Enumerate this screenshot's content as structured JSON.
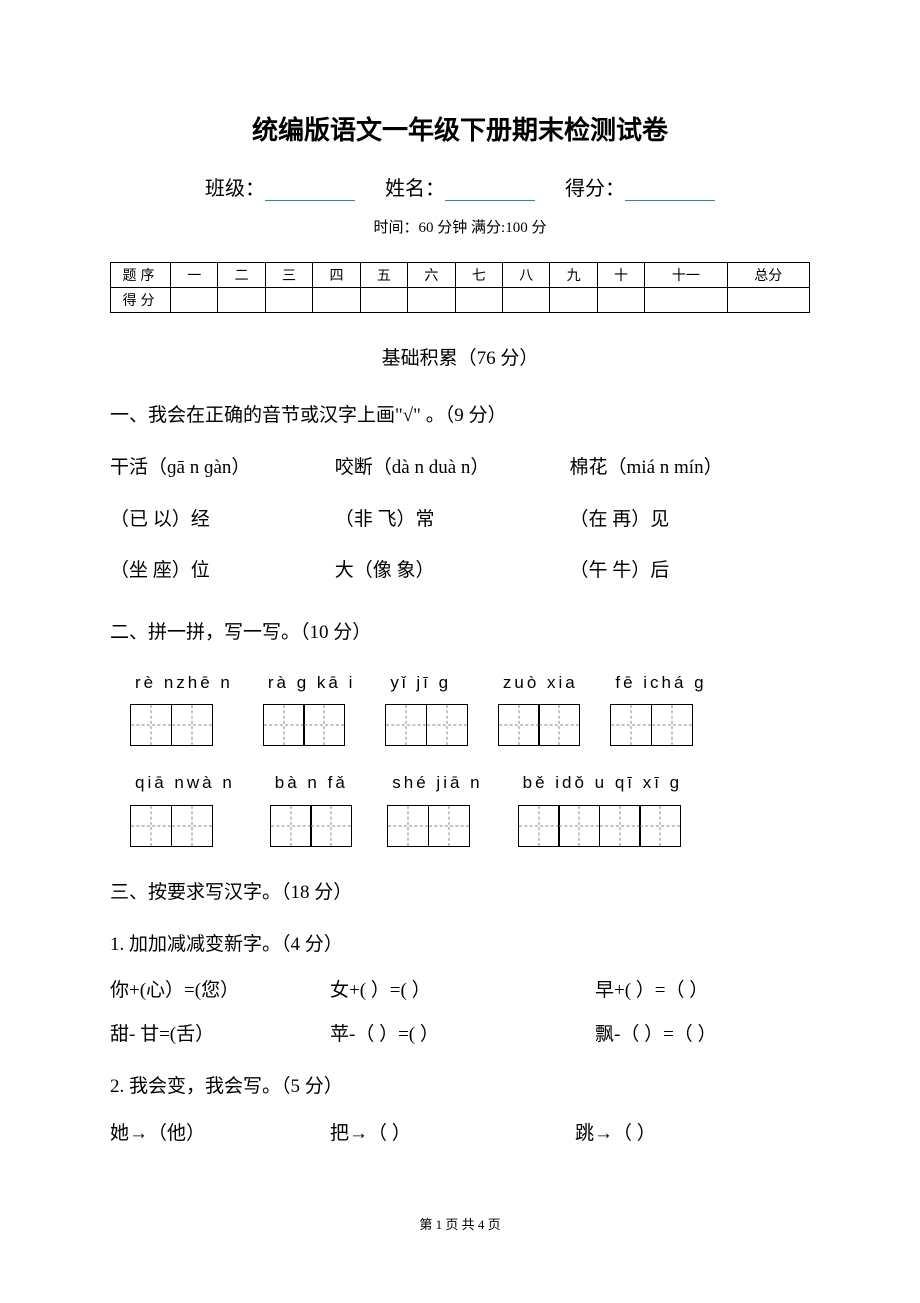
{
  "title": "统编版语文一年级下册期末检测试卷",
  "meta": {
    "class_label": "班级：",
    "name_label": "姓名：",
    "score_label": "得分："
  },
  "time_info": "时间：60 分钟    满分:100 分",
  "score_table": {
    "row1_label": "题序",
    "row2_label": "得分",
    "cols": [
      "一",
      "二",
      "三",
      "四",
      "五",
      "六",
      "七",
      "八",
      "九",
      "十",
      "十一",
      "总分"
    ]
  },
  "section_title": "基础积累（76 分）",
  "q1": {
    "heading": "一、我会在正确的音节或汉字上画\"√\" 。（9 分）",
    "line1": {
      "a": "干活（ɡā n ɡàn）",
      "b": "咬断（dà n duà n）",
      "c": "棉花（miá n mín）"
    },
    "line2": {
      "a": "（已   以）经",
      "b": "（非   飞）常",
      "c": "（在   再）见"
    },
    "line3": {
      "a": "（坐   座）位",
      "b": "大（像   象）",
      "c": "（午   牛）后"
    }
  },
  "q2": {
    "heading": "二、拼一拼，写一写。（10 分）",
    "row1": [
      {
        "pinyin": "rè nzhē n",
        "boxes": 2
      },
      {
        "pinyin": "rà ɡ kā i",
        "boxes": 2
      },
      {
        "pinyin": "yǐ jī ɡ",
        "boxes": 2
      },
      {
        "pinyin": "zuò xia",
        "boxes": 2
      },
      {
        "pinyin": "fē ichá ɡ",
        "boxes": 2
      }
    ],
    "row2": [
      {
        "pinyin": "qiā nwà n",
        "boxes": 2
      },
      {
        "pinyin": "bà n fǎ",
        "boxes": 2
      },
      {
        "pinyin": "shé jiā n",
        "boxes": 2
      },
      {
        "pinyin": "bě idǒ u qī xī ɡ",
        "boxes": 4
      }
    ]
  },
  "q3": {
    "heading": "三、按要求写汉字。（18 分）",
    "sub1_heading": "1. 加加减减变新字。（4 分）",
    "sub1_line1": {
      "a": "你+(心）=(您）",
      "b": "女+(     ）=(     ）",
      "c": "早+(     ）=（     ）"
    },
    "sub1_line2": {
      "a": "甜- 甘=(舌）",
      "b": "苹-（     ）=(     ）",
      "c": "飘-（     ）=（     ）"
    },
    "sub2_heading": "2. 我会变，我会写。（5 分）",
    "sub2_line": {
      "a": "她→（他）",
      "b": "把→（      ）",
      "c": "跳→（       ）"
    }
  },
  "footer": "第 1 页 共 4 页"
}
